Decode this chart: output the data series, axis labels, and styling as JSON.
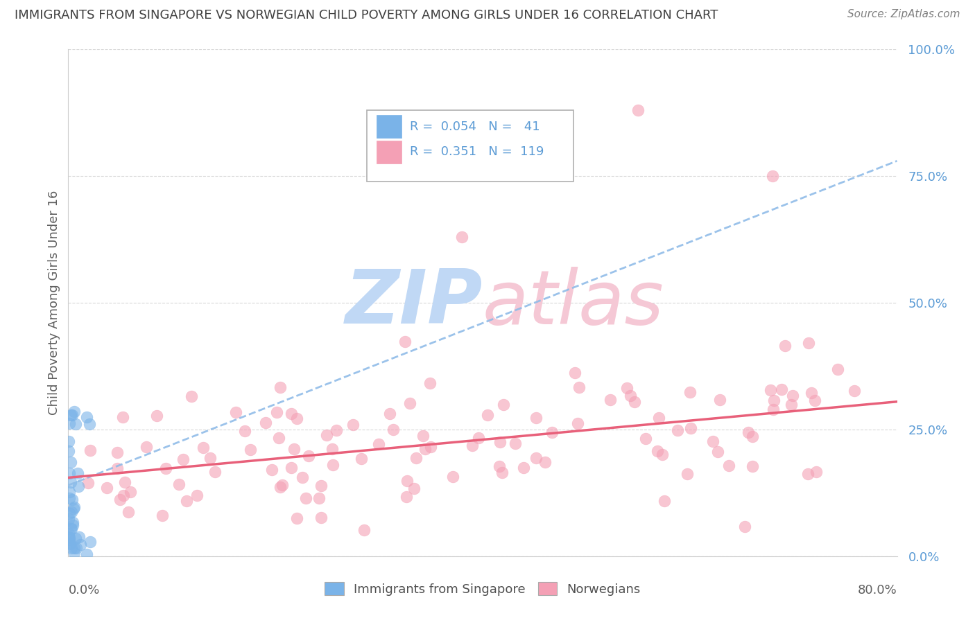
{
  "title": "IMMIGRANTS FROM SINGAPORE VS NORWEGIAN CHILD POVERTY AMONG GIRLS UNDER 16 CORRELATION CHART",
  "source": "Source: ZipAtlas.com",
  "ylabel": "Child Poverty Among Girls Under 16",
  "legend_blue_r": "0.054",
  "legend_blue_n": "41",
  "legend_pink_r": "0.351",
  "legend_pink_n": "119",
  "legend_label_blue": "Immigrants from Singapore",
  "legend_label_pink": "Norwegians",
  "blue_color": "#7ab3e8",
  "pink_color": "#f4a0b5",
  "blue_line_color": "#90bce8",
  "pink_line_color": "#e8607a",
  "tick_color": "#5b9bd5",
  "bg_color": "#ffffff",
  "grid_color": "#d8d8d8",
  "title_color": "#404040",
  "ylabel_color": "#606060",
  "watermark_zip_color": "#c0d8f5",
  "watermark_atlas_color": "#f5c8d5",
  "xlim": [
    0.0,
    0.8
  ],
  "ylim": [
    0.0,
    1.0
  ],
  "yticks": [
    0.0,
    0.25,
    0.5,
    0.75,
    1.0
  ],
  "ytick_labels": [
    "0.0%",
    "25.0%",
    "50.0%",
    "75.0%",
    "100.0%"
  ],
  "blue_line_x0": 0.0,
  "blue_line_y0": 0.14,
  "blue_line_x1": 0.8,
  "blue_line_y1": 0.78,
  "pink_line_x0": 0.0,
  "pink_line_x1": 0.8,
  "pink_line_y0": 0.155,
  "pink_line_y1": 0.305
}
